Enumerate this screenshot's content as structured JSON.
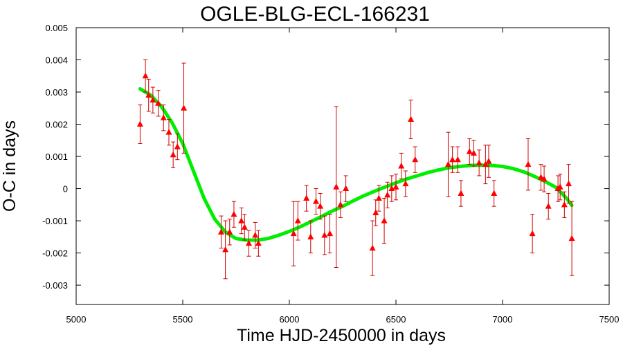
{
  "chart_data": {
    "type": "scatter",
    "title": "OGLE-BLG-ECL-166231",
    "xlabel": "Time HJD-2450000 in days",
    "ylabel": "O-C in days",
    "xlim": [
      5000,
      7500
    ],
    "ylim": [
      -0.0036,
      0.005
    ],
    "x_ticks": [
      5000,
      5500,
      6000,
      6500,
      7000,
      7500
    ],
    "x_tick_labels": [
      "5000",
      "5500",
      "6000",
      "6500",
      "7000",
      "7500"
    ],
    "y_ticks": [
      -0.003,
      -0.002,
      -0.001,
      0,
      0.001,
      0.002,
      0.003,
      0.004,
      0.005
    ],
    "y_tick_labels": [
      "-0.003",
      "-0.002",
      "-0.001",
      "0",
      "0.001",
      "0.002",
      "0.003",
      "0.004",
      "0.005"
    ],
    "grid": false,
    "colors": {
      "points": "#ff0000",
      "errorbars": "#cc0000",
      "fit": "#00ee00"
    },
    "series": [
      {
        "type": "scatter_errorbars",
        "points": [
          {
            "x": 5300,
            "y": 0.002,
            "err": 0.0006
          },
          {
            "x": 5325,
            "y": 0.0035,
            "err": 0.0005
          },
          {
            "x": 5340,
            "y": 0.0029,
            "err": 0.0005
          },
          {
            "x": 5360,
            "y": 0.00275,
            "err": 0.0004
          },
          {
            "x": 5385,
            "y": 0.00265,
            "err": 0.0004
          },
          {
            "x": 5410,
            "y": 0.0022,
            "err": 0.0004
          },
          {
            "x": 5435,
            "y": 0.00175,
            "err": 0.0004
          },
          {
            "x": 5455,
            "y": 0.00105,
            "err": 0.0004
          },
          {
            "x": 5475,
            "y": 0.0013,
            "err": 0.0004
          },
          {
            "x": 5505,
            "y": 0.0025,
            "err": 0.0014
          },
          {
            "x": 5680,
            "y": -0.00135,
            "err": 0.0005
          },
          {
            "x": 5700,
            "y": -0.0019,
            "err": 0.0009
          },
          {
            "x": 5720,
            "y": -0.00135,
            "err": 0.0004
          },
          {
            "x": 5740,
            "y": -0.0008,
            "err": 0.0004
          },
          {
            "x": 5775,
            "y": -0.001,
            "err": 0.0004
          },
          {
            "x": 5790,
            "y": -0.0012,
            "err": 0.0004
          },
          {
            "x": 5810,
            "y": -0.0017,
            "err": 0.0004
          },
          {
            "x": 5840,
            "y": -0.00145,
            "err": 0.0004
          },
          {
            "x": 5855,
            "y": -0.0017,
            "err": 0.0004
          },
          {
            "x": 6020,
            "y": -0.0014,
            "err": 0.001
          },
          {
            "x": 6040,
            "y": -0.001,
            "err": 0.0006
          },
          {
            "x": 6080,
            "y": -0.0003,
            "err": 0.0004
          },
          {
            "x": 6100,
            "y": -0.0015,
            "err": 0.0005
          },
          {
            "x": 6125,
            "y": -0.0004,
            "err": 0.0004
          },
          {
            "x": 6145,
            "y": -0.00055,
            "err": 0.0004
          },
          {
            "x": 6165,
            "y": -0.00145,
            "err": 0.0006
          },
          {
            "x": 6190,
            "y": -0.0014,
            "err": 0.0006
          },
          {
            "x": 6220,
            "y": 5e-05,
            "err": 0.0025
          },
          {
            "x": 6240,
            "y": -0.0005,
            "err": 0.0004
          },
          {
            "x": 6265,
            "y": 0.0,
            "err": 0.0004
          },
          {
            "x": 6390,
            "y": -0.00185,
            "err": 0.00085
          },
          {
            "x": 6405,
            "y": -0.00075,
            "err": 0.0004
          },
          {
            "x": 6420,
            "y": -0.0003,
            "err": 0.0004
          },
          {
            "x": 6445,
            "y": -0.001,
            "err": 0.0007
          },
          {
            "x": 6460,
            "y": -0.0002,
            "err": 0.0004
          },
          {
            "x": 6480,
            "y": 0.0,
            "err": 0.0004
          },
          {
            "x": 6500,
            "y": 5e-05,
            "err": 0.0004
          },
          {
            "x": 6525,
            "y": 0.0007,
            "err": 0.0004
          },
          {
            "x": 6545,
            "y": 0.00015,
            "err": 0.0004
          },
          {
            "x": 6570,
            "y": 0.00215,
            "err": 0.0006
          },
          {
            "x": 6590,
            "y": 0.0009,
            "err": 0.0004
          },
          {
            "x": 6745,
            "y": 0.00075,
            "err": 0.001
          },
          {
            "x": 6765,
            "y": 0.0009,
            "err": 0.0004
          },
          {
            "x": 6790,
            "y": 0.0009,
            "err": 0.0004
          },
          {
            "x": 6805,
            "y": -0.00015,
            "err": 0.0004
          },
          {
            "x": 6845,
            "y": 0.00115,
            "err": 0.0004
          },
          {
            "x": 6865,
            "y": 0.0011,
            "err": 0.0004
          },
          {
            "x": 6890,
            "y": 0.0008,
            "err": 0.0004
          },
          {
            "x": 6920,
            "y": 0.00075,
            "err": 0.0006
          },
          {
            "x": 6935,
            "y": 0.00085,
            "err": 0.0005
          },
          {
            "x": 6960,
            "y": -0.00015,
            "err": 0.0004
          },
          {
            "x": 7120,
            "y": 0.00075,
            "err": 0.0008
          },
          {
            "x": 7140,
            "y": -0.0014,
            "err": 0.0006
          },
          {
            "x": 7180,
            "y": 0.00035,
            "err": 0.0004
          },
          {
            "x": 7195,
            "y": 0.0003,
            "err": 0.0004
          },
          {
            "x": 7215,
            "y": -0.00055,
            "err": 0.0004
          },
          {
            "x": 7260,
            "y": 0.0,
            "err": 0.0004
          },
          {
            "x": 7270,
            "y": 5e-05,
            "err": 0.0004
          },
          {
            "x": 7290,
            "y": -0.0005,
            "err": 0.0004
          },
          {
            "x": 7310,
            "y": 0.00015,
            "err": 0.0006
          },
          {
            "x": 7325,
            "y": -0.00155,
            "err": 0.00115
          }
        ]
      },
      {
        "type": "line",
        "x": [
          5300,
          5350,
          5400,
          5450,
          5500,
          5550,
          5600,
          5650,
          5700,
          5750,
          5800,
          5850,
          5900,
          5950,
          6000,
          6050,
          6100,
          6150,
          6200,
          6250,
          6300,
          6350,
          6400,
          6450,
          6500,
          6550,
          6600,
          6650,
          6700,
          6750,
          6800,
          6850,
          6900,
          6950,
          7000,
          7050,
          7100,
          7150,
          7200,
          7250,
          7300,
          7325
        ],
        "values": [
          0.0031,
          0.0029,
          0.00255,
          0.00205,
          0.0014,
          0.00055,
          -0.0003,
          -0.00095,
          -0.00135,
          -0.00155,
          -0.0016,
          -0.0016,
          -0.00155,
          -0.00145,
          -0.00133,
          -0.00119,
          -0.00103,
          -0.00087,
          -0.0007,
          -0.00055,
          -0.00038,
          -0.00022,
          -8e-05,
          5e-05,
          0.00018,
          0.0003,
          0.0004,
          0.0005,
          0.00058,
          0.00065,
          0.00069,
          0.00072,
          0.00073,
          0.00072,
          0.00069,
          0.00062,
          0.00052,
          0.00038,
          0.00022,
          4e-05,
          -0.0003,
          -0.00052
        ]
      }
    ]
  }
}
